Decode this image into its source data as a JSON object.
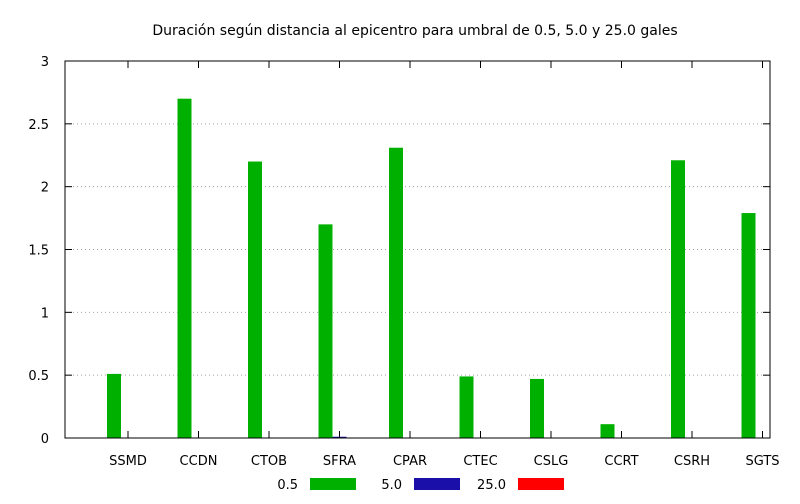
{
  "chart_data": {
    "type": "bar",
    "title": "Duración según distancia al epicentro para umbral de 0.5, 5.0 y 25.0 gales",
    "xlabel": "",
    "ylabel": "",
    "categories": [
      "SSMD",
      "CCDN",
      "CTOB",
      "SFRA",
      "CPAR",
      "CTEC",
      "CSLG",
      "CCRT",
      "CSRH",
      "SGTS"
    ],
    "series": [
      {
        "name": "0.5",
        "color": "#00b000",
        "values": [
          0.51,
          2.7,
          2.2,
          1.7,
          2.31,
          0.49,
          0.47,
          0.11,
          2.21,
          1.79
        ]
      },
      {
        "name": "5.0",
        "color": "#1a0fa8",
        "values": [
          0,
          0,
          0,
          0.01,
          0,
          0,
          0,
          0,
          0,
          0
        ]
      },
      {
        "name": "25.0",
        "color": "#ff0000",
        "values": [
          0,
          0,
          0,
          0,
          0,
          0,
          0,
          0,
          0,
          0
        ]
      }
    ],
    "ylim": [
      0,
      3
    ],
    "yticks": [
      "0",
      "0.5",
      "1",
      "1.5",
      "2",
      "2.5",
      "3"
    ],
    "grid": "horizontal dotted",
    "legend_position": "bottom"
  }
}
